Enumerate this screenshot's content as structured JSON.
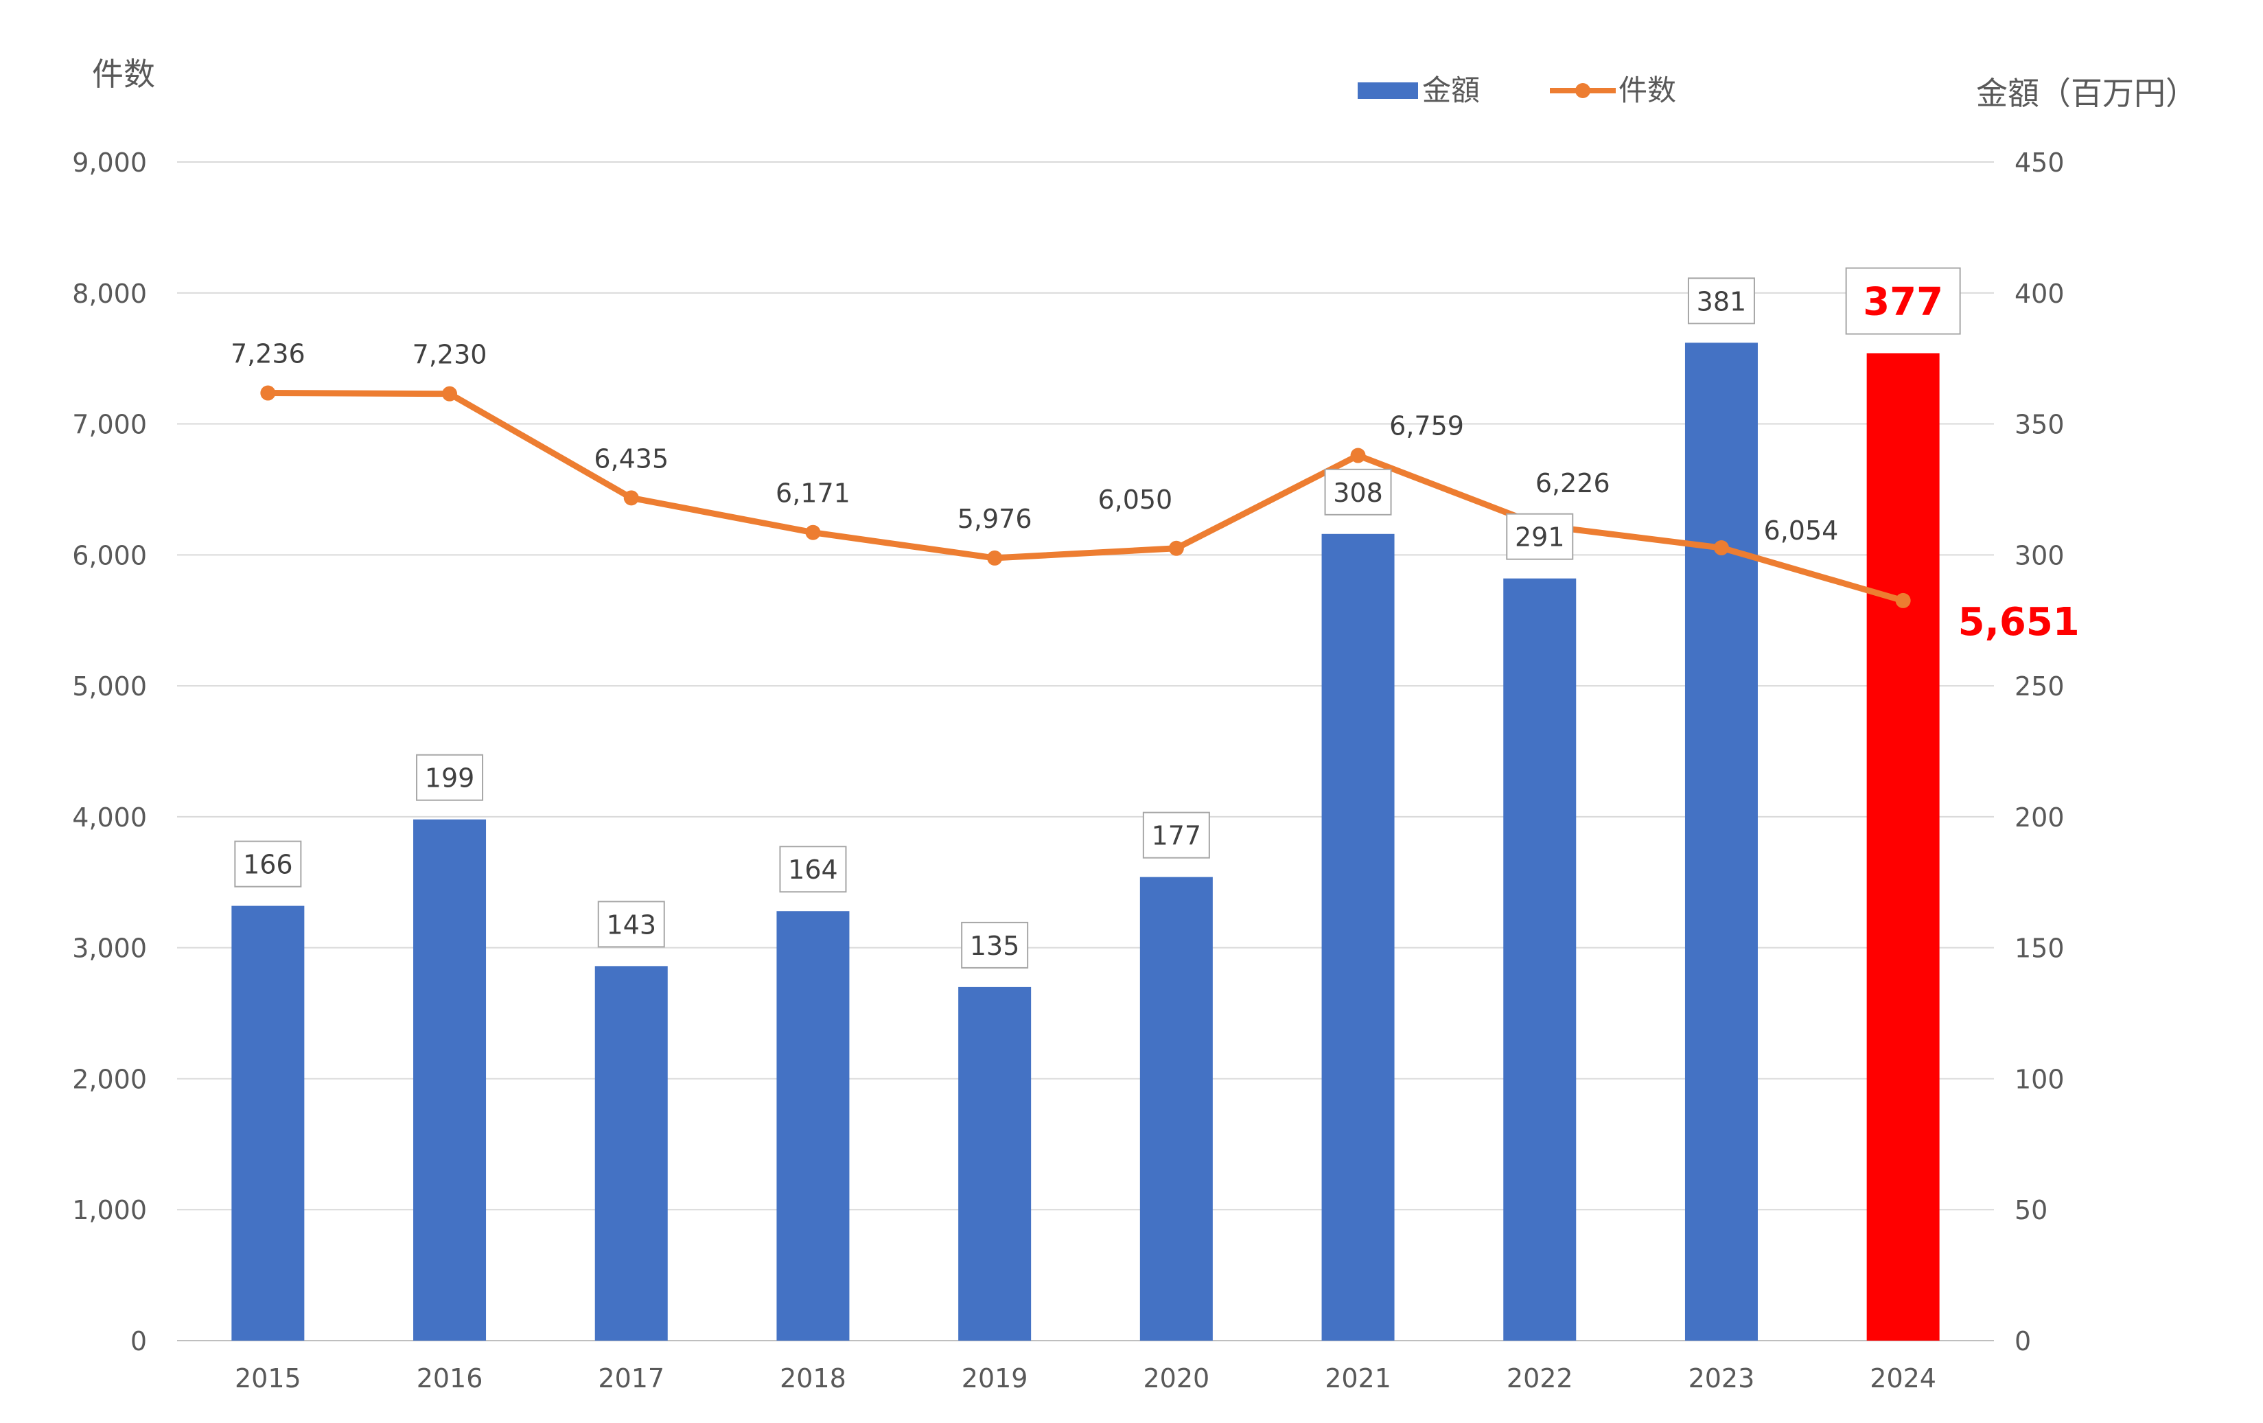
{
  "chart_data": {
    "type": "bar",
    "title": "",
    "xlabel": "",
    "ylabel_left": "件数",
    "ylabel_right": "金額（百万円）",
    "categories": [
      "2015",
      "2016",
      "2017",
      "2018",
      "2019",
      "2020",
      "2021",
      "2022",
      "2023",
      "2024"
    ],
    "ylim_left": [
      0,
      9000
    ],
    "ylim_right": [
      0,
      450
    ],
    "yticks_left": [
      "0",
      "1,000",
      "2,000",
      "3,000",
      "4,000",
      "5,000",
      "6,000",
      "7,000",
      "8,000",
      "9,000"
    ],
    "yticks_right": [
      "0",
      "50",
      "100",
      "150",
      "200",
      "250",
      "300",
      "350",
      "400",
      "450"
    ],
    "grid": true,
    "legend_position": "top-right",
    "series": [
      {
        "name": "金額",
        "type": "bar",
        "axis": "right",
        "color": "#4472C4",
        "highlight_color": "#FF0000",
        "highlight_index": 9,
        "values": [
          166,
          199,
          143,
          164,
          135,
          177,
          308,
          291,
          381,
          377
        ],
        "labels": [
          "166",
          "199",
          "143",
          "164",
          "135",
          "177",
          "308",
          "291",
          "381",
          "377"
        ]
      },
      {
        "name": "件数",
        "type": "line",
        "axis": "left",
        "color": "#ED7D31",
        "highlight_color": "#FF0000",
        "highlight_index": 9,
        "values": [
          7236,
          7230,
          6435,
          6171,
          5976,
          6050,
          6759,
          6226,
          6054,
          5651
        ],
        "labels": [
          "7,236",
          "7,230",
          "6,435",
          "6,171",
          "5,976",
          "6,050",
          "6,759",
          "6,226",
          "6,054",
          "5,651"
        ]
      }
    ]
  }
}
